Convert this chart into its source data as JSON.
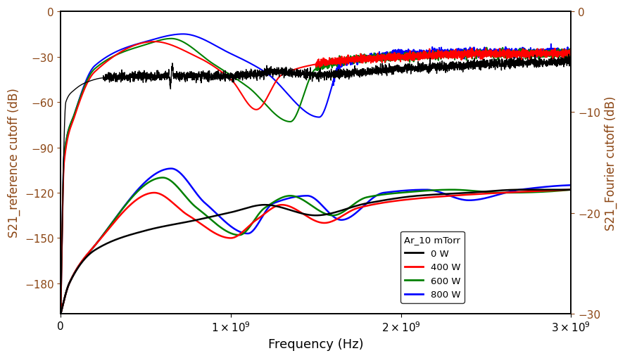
{
  "xlabel": "Frequency (Hz)",
  "ylabel_left": "S21_reference cutoff (dB)",
  "ylabel_right": "S21_Fourier cutoff (dB)",
  "xlim": [
    0,
    3000000000.0
  ],
  "ylim_left": [
    -200,
    0
  ],
  "ylim_right": [
    -30,
    0
  ],
  "xticks": [
    0,
    1000000000.0,
    2000000000.0,
    3000000000.0
  ],
  "yticks_left": [
    0,
    -30,
    -60,
    -90,
    -120,
    -150,
    -180
  ],
  "yticks_right": [
    0,
    -10,
    -20,
    -30
  ],
  "legend_title": "Ar_10 mTorr",
  "legend_labels": [
    "0 W",
    "400 W",
    "600 W",
    "800 W"
  ],
  "colors": [
    "black",
    "red",
    "green",
    "blue"
  ]
}
